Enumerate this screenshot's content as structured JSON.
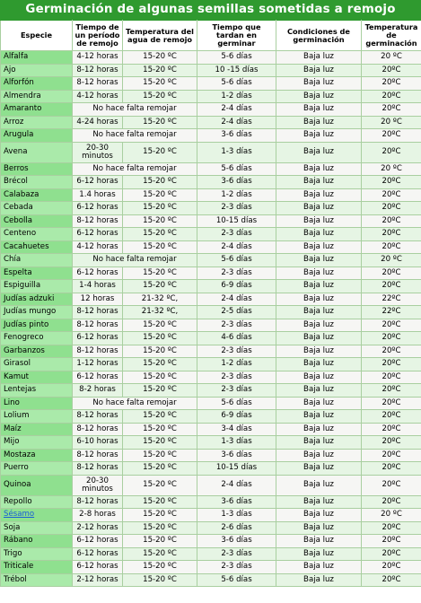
{
  "title": "Germinación de algunas semillas sometidas a remojo",
  "headers": {
    "especie": "Especie",
    "tiempo_remojo": "Tiempo de un período de remojo",
    "temp_agua": "Temperatura del agua de remojo",
    "tiempo_germinar": "Tiempo que tardan en germinar",
    "condiciones": "Condiciones de germinación",
    "temp_germ": "Temperatura de germinación"
  },
  "rows": [
    {
      "sp": "Alfalfa",
      "t": "4-12 horas",
      "w": "15-20 ºC",
      "g": "5-6 días",
      "c": "Baja luz",
      "tg": "20 ºC"
    },
    {
      "sp": "Ajo",
      "t": "8-12 horas",
      "w": "15-20 ºC",
      "g": "10 -15 días",
      "c": "Baja luz",
      "tg": "20ºC"
    },
    {
      "sp": "Alforfón",
      "t": "8-12 horas",
      "w": "15-20 ºC",
      "g": "5-6 días",
      "c": "Baja luz",
      "tg": "20ºC"
    },
    {
      "sp": "Almendra",
      "t": "4-12 horas",
      "w": "15-20 ºC",
      "g": "1-2 días",
      "c": "Baja luz",
      "tg": "20ºC"
    },
    {
      "sp": "Amaranto",
      "merged": "No hace falta remojar",
      "g": "2-4 días",
      "c": "Baja luz",
      "tg": "20ºC"
    },
    {
      "sp": "Arroz",
      "t": "4-24 horas",
      "w": "15-20 ºC",
      "g": "2-4 días",
      "c": "Baja luz",
      "tg": "20 ºC"
    },
    {
      "sp": "Arugula",
      "merged": "No hace falta remojar",
      "g": "3-6 días",
      "c": "Baja luz",
      "tg": "20ºC"
    },
    {
      "sp": "Avena",
      "t": "20-30 minutos",
      "w": "15-20 ºC",
      "g": "1-3 días",
      "c": "Baja luz",
      "tg": "20ºC",
      "tall": true
    },
    {
      "sp": "Berros",
      "merged": "No hace falta remojar",
      "g": "5-6 días",
      "c": "Baja luz",
      "tg": "20 ºC"
    },
    {
      "sp": "Brécol",
      "t": "6-12 horas",
      "w": "15-20 ºC",
      "g": "3-6 días",
      "c": "Baja luz",
      "tg": "20ºC"
    },
    {
      "sp": "Calabaza",
      "t": "1.4 horas",
      "w": "15-20 ºC",
      "g": "1-2 días",
      "c": "Baja luz",
      "tg": "20ºC"
    },
    {
      "sp": "Cebada",
      "t": "6-12 horas",
      "w": "15-20 ºC",
      "g": "2-3 días",
      "c": "Baja luz",
      "tg": "20ºC"
    },
    {
      "sp": "Cebolla",
      "t": "8-12 horas",
      "w": "15-20 ºC",
      "g": "10-15 días",
      "c": "Baja luz",
      "tg": "20ºC"
    },
    {
      "sp": "Centeno",
      "t": "6-12 horas",
      "w": "15-20 ºC",
      "g": "2-3 días",
      "c": "Baja luz",
      "tg": "20ºC"
    },
    {
      "sp": "Cacahuetes",
      "t": "4-12 horas",
      "w": "15-20 ºC",
      "g": "2-4 días",
      "c": "Baja luz",
      "tg": "20ºC"
    },
    {
      "sp": "Chía",
      "merged": "No hace falta remojar",
      "g": "5-6 días",
      "c": "Baja luz",
      "tg": "20 ºC"
    },
    {
      "sp": "Espelta",
      "t": "6-12 horas",
      "w": "15-20 ºC",
      "g": "2-3 días",
      "c": "Baja luz",
      "tg": "20ºC"
    },
    {
      "sp": "Espiguilla",
      "t": "1-4 horas",
      "w": "15-20 ºC",
      "g": "6-9 días",
      "c": "Baja luz",
      "tg": "20ºC"
    },
    {
      "sp": "Judías adzuki",
      "t": "12 horas",
      "w": "21-32 ºC,",
      "g": "2-4 días",
      "c": "Baja luz",
      "tg": "22ºC"
    },
    {
      "sp": "Judías mungo",
      "t": "8-12 horas",
      "w": "21-32 ºC,",
      "g": "2-5 días",
      "c": "Baja luz",
      "tg": "22ºC"
    },
    {
      "sp": "Judías pinto",
      "t": "8-12 horas",
      "w": "15-20 ºC",
      "g": "2-3 días",
      "c": "Baja luz",
      "tg": "20ºC"
    },
    {
      "sp": "Fenogreco",
      "t": "6-12 horas",
      "w": "15-20 ºC",
      "g": "4-6 días",
      "c": "Baja luz",
      "tg": "20ºC"
    },
    {
      "sp": "Garbanzos",
      "t": "8-12 horas",
      "w": "15-20 ºC",
      "g": "2-3 días",
      "c": "Baja luz",
      "tg": "20ºC"
    },
    {
      "sp": "Girasol",
      "t": "1-12 horas",
      "w": "15-20 ºC",
      "g": "1-2 días",
      "c": "Baja luz",
      "tg": "20ºC"
    },
    {
      "sp": "Kamut",
      "t": "6-12 horas",
      "w": "15-20 ºC",
      "g": "2-3 días",
      "c": "Baja luz",
      "tg": "20ºC"
    },
    {
      "sp": "Lentejas",
      "t": "8-2 horas",
      "w": "15-20 ºC",
      "g": "2-3 días",
      "c": "Baja luz",
      "tg": "20ºC"
    },
    {
      "sp": "Lino",
      "merged": "No hace falta remojar",
      "g": "5-6 días",
      "c": "Baja luz",
      "tg": "20ºC"
    },
    {
      "sp": "Lolium",
      "t": "8-12 horas",
      "w": "15-20 ºC",
      "g": "6-9 días",
      "c": "Baja luz",
      "tg": "20ºC"
    },
    {
      "sp": "Maíz",
      "t": "8-12 horas",
      "w": "15-20 ºC",
      "g": "3-4 días",
      "c": "Baja luz",
      "tg": "20ºC"
    },
    {
      "sp": "Mijo",
      "t": "6-10 horas",
      "w": "15-20 ºC",
      "g": "1-3 días",
      "c": "Baja luz",
      "tg": "20ºC"
    },
    {
      "sp": "Mostaza",
      "t": "8-12 horas",
      "w": "15-20 ºC",
      "g": "3-6 días",
      "c": "Baja luz",
      "tg": "20ºC"
    },
    {
      "sp": "Puerro",
      "t": "8-12 horas",
      "w": "15-20 ºC",
      "g": "10-15 días",
      "c": "Baja luz",
      "tg": "20ºC"
    },
    {
      "sp": "Quinoa",
      "t": "20-30 minutos",
      "w": "15-20 ºC",
      "g": "2-4 días",
      "c": "Baja luz",
      "tg": "20ºC",
      "tall": true
    },
    {
      "sp": "Repollo",
      "t": "8-12 horas",
      "w": "15-20 ºC",
      "g": "3-6 días",
      "c": "Baja luz",
      "tg": "20ºC"
    },
    {
      "sp": "Sésamo",
      "t": "2-8 horas",
      "w": "15-20 ºC",
      "g": "1-3 días",
      "c": "Baja luz",
      "tg": "20 ºC",
      "link": true
    },
    {
      "sp": "Soja",
      "t": "2-12 horas",
      "w": "15-20 ºC",
      "g": "2-6 días",
      "c": "Baja luz",
      "tg": "20ºC"
    },
    {
      "sp": "Rábano",
      "t": "6-12 horas",
      "w": "15-20 ºC",
      "g": "3-6 días",
      "c": "Baja luz",
      "tg": "20ºC"
    },
    {
      "sp": "Trigo",
      "t": "6-12 horas",
      "w": "15-20 ºC",
      "g": "2-3 días",
      "c": "Baja luz",
      "tg": "20ºC"
    },
    {
      "sp": "Triticale",
      "t": "6-12 horas",
      "w": "15-20 ºC",
      "g": "2-3 días",
      "c": "Baja luz",
      "tg": "20ºC"
    },
    {
      "sp": "Trébol",
      "t": "2-12 horas",
      "w": "15-20 ºC",
      "g": "5-6 días",
      "c": "Baja luz",
      "tg": "20ºC"
    }
  ]
}
